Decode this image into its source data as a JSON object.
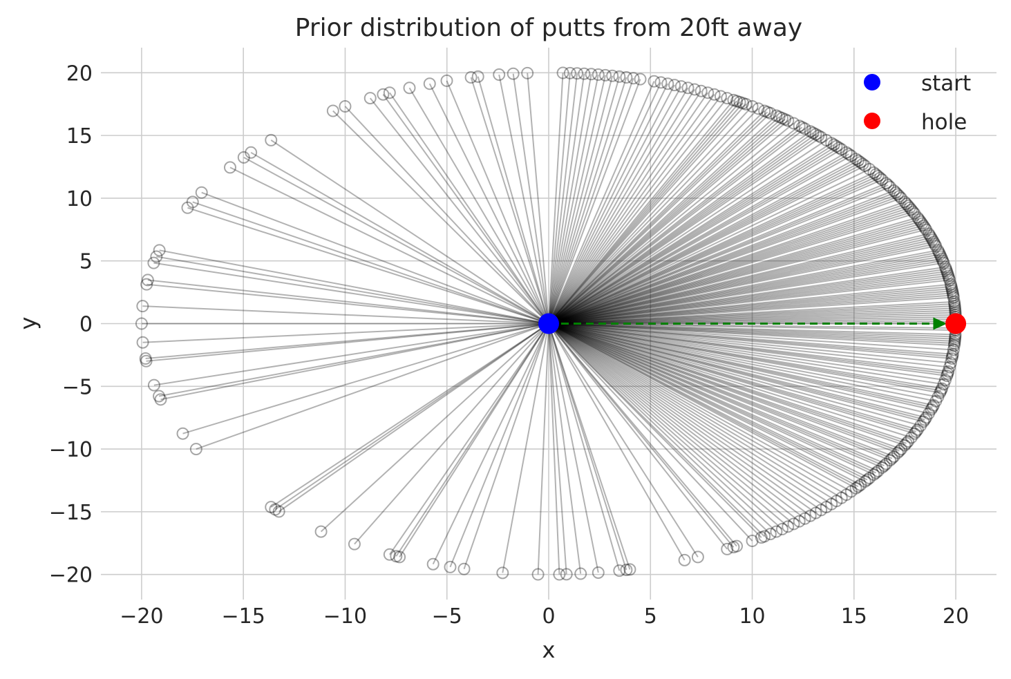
{
  "chart_data": {
    "type": "scatter",
    "title": "Prior distribution of putts from 20ft away",
    "xlabel": "x",
    "ylabel": "y",
    "xlim": [
      -22,
      22
    ],
    "ylim": [
      -22,
      22
    ],
    "xticks": [
      -20,
      -15,
      -10,
      -5,
      0,
      5,
      10,
      15,
      20
    ],
    "yticks": [
      -20,
      -15,
      -10,
      -5,
      0,
      5,
      10,
      15,
      20
    ],
    "grid": true,
    "legend_position": "top-right",
    "putt_distance": 20,
    "start": {
      "name": "start",
      "x": 0,
      "y": 0,
      "color": "#0000ff"
    },
    "hole": {
      "name": "hole",
      "x": 20,
      "y": 0,
      "color": "#ff0000"
    },
    "aim": {
      "from": [
        0,
        0
      ],
      "to": [
        19.3,
        0
      ],
      "color": "#008000",
      "style": "dashed"
    },
    "putt_angles_deg": [
      180,
      184.3,
      188,
      188.6,
      194.2,
      196.8,
      197.6,
      206,
      210,
      227,
      227.8,
      228.5,
      236,
      241.5,
      247,
      248,
      248.5,
      253.5,
      256,
      258,
      263.5,
      268.5,
      271.5,
      272.5,
      274.5,
      277,
      280,
      281,
      281.5,
      291.5,
      297,
      297.5,
      300,
      304,
      305,
      307,
      309,
      310,
      312,
      314,
      316,
      318,
      320,
      322,
      324,
      326,
      328,
      330,
      332,
      333,
      335,
      337,
      338,
      340,
      342,
      343,
      345,
      347,
      349,
      351,
      353,
      355,
      357,
      358.5,
      0,
      1.5,
      3,
      5,
      7,
      9,
      11,
      12,
      14,
      16,
      18,
      20,
      22,
      24,
      26,
      28,
      30,
      32,
      34,
      36,
      38,
      40,
      41,
      43,
      45,
      47,
      49,
      51,
      53,
      55,
      57,
      59,
      61,
      63,
      65,
      68,
      71,
      75,
      77,
      79,
      81,
      83,
      84,
      85,
      87,
      93,
      95,
      97,
      100,
      101,
      104.5,
      107,
      110,
      113,
      114,
      116,
      120,
      122,
      133,
      137,
      138.5,
      141.5,
      148.5,
      151,
      152.5,
      163,
      164.5,
      166,
      170,
      171,
      176,
      355.5,
      356.5,
      2,
      4,
      6,
      8,
      10,
      13,
      15,
      17,
      19,
      21,
      23,
      25,
      27,
      29,
      31,
      33,
      35,
      37,
      39,
      42,
      44,
      46,
      48,
      50,
      52,
      54,
      56,
      58,
      60,
      62,
      64,
      67,
      70,
      73,
      319,
      321,
      323,
      325,
      327,
      329,
      331,
      334,
      336,
      339,
      341,
      344,
      346,
      348,
      350,
      352,
      354,
      356,
      359,
      1,
      2.5,
      4.5,
      6.5,
      8.5,
      10.5,
      12.5,
      14.5,
      16.5,
      18.5,
      20.5,
      22.5,
      24.5,
      26.5,
      28.5,
      30.5,
      33.5,
      36.5,
      39.5,
      42.5,
      45.5,
      48.5,
      51.5,
      54.5,
      57.5,
      62.5,
      66,
      72,
      78,
      82,
      86,
      88,
      303,
      306,
      308,
      311,
      313,
      315,
      317,
      319.5,
      321.5,
      323.5,
      325.5,
      327.5,
      329.5,
      331.5,
      334.5,
      337.5,
      340.5,
      344.5,
      348.5,
      352.5,
      357.5,
      0.5,
      3.5,
      7.5,
      11.5,
      15.5,
      19.5,
      23.5,
      27.5,
      31.5,
      35.5,
      40.5,
      44.5,
      49.5,
      55.5,
      61.5,
      69,
      74,
      80,
      289.5,
      296,
      301.5,
      302
    ]
  },
  "legend": {
    "start_label": "start",
    "hole_label": "hole"
  }
}
